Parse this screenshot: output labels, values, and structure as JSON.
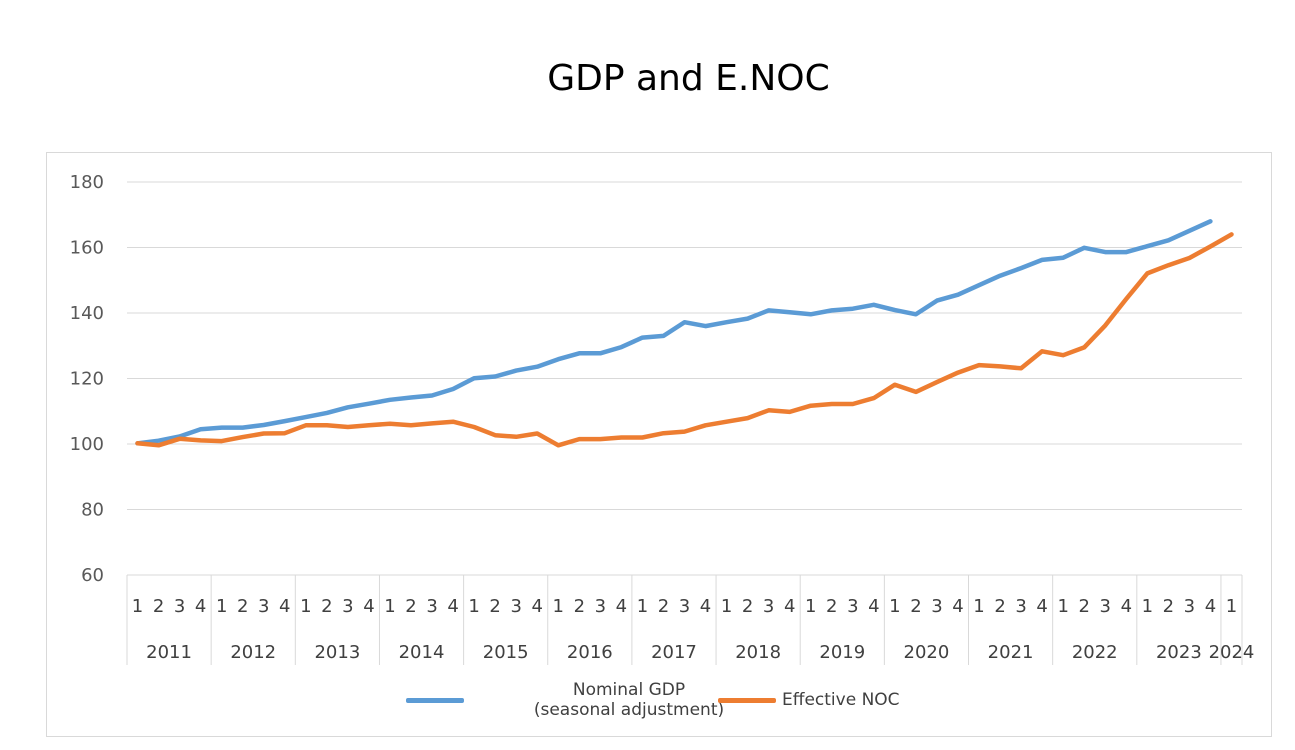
{
  "chart_data": {
    "type": "line",
    "title": "GDP and E.NOC",
    "ylim": [
      60,
      180
    ],
    "yticks": [
      "60",
      "80",
      "100",
      "120",
      "140",
      "160",
      "180"
    ],
    "grid": true,
    "legend_placement": "bottom",
    "quarter_labels": [
      "1",
      "2",
      "3",
      "4",
      "1",
      "2",
      "3",
      "4",
      "1",
      "2",
      "3",
      "4",
      "1",
      "2",
      "3",
      "4",
      "1",
      "2",
      "3",
      "4",
      "1",
      "2",
      "3",
      "4",
      "1",
      "2",
      "3",
      "4",
      "1",
      "2",
      "3",
      "4",
      "1",
      "2",
      "3",
      "4",
      "1",
      "2",
      "3",
      "4",
      "1",
      "2",
      "3",
      "4",
      "1",
      "2",
      "3",
      "4",
      "1",
      "2",
      "3",
      "4",
      "1"
    ],
    "years": [
      "2011",
      "2012",
      "2013",
      "2014",
      "2015",
      "2016",
      "2017",
      "2018",
      "2019",
      "2020",
      "2021",
      "2022",
      "2023",
      "2024"
    ],
    "series": [
      {
        "name": "Nominal GDP\n(seasonal adjustment)",
        "color": "#5b9bd5",
        "values": [
          100.2,
          101.0,
          102.3,
          104.5,
          105.0,
          105.0,
          105.8,
          107.0,
          108.2,
          109.5,
          111.2,
          112.3,
          113.5,
          114.2,
          114.8,
          116.8,
          120.1,
          120.6,
          122.4,
          123.6,
          125.9,
          127.7,
          127.7,
          129.6,
          132.5,
          133.0,
          137.2,
          136.0,
          137.2,
          138.3,
          140.8,
          140.2,
          139.6,
          140.8,
          141.3,
          142.5,
          140.9,
          139.6,
          143.8,
          145.6,
          148.5,
          151.4,
          153.7,
          156.2,
          156.9,
          159.9,
          158.6,
          158.6,
          160.4,
          162.2,
          165.1,
          168.0,
          null
        ]
      },
      {
        "name": "Effective NOC",
        "color": "#ed7d31",
        "values": [
          100.2,
          99.6,
          101.6,
          101.1,
          100.9,
          102.1,
          103.2,
          103.3,
          105.7,
          105.7,
          105.2,
          105.7,
          106.2,
          105.7,
          106.3,
          106.8,
          105.2,
          102.7,
          102.2,
          103.2,
          99.6,
          101.5,
          101.5,
          102.0,
          102.0,
          103.3,
          103.8,
          105.7,
          106.8,
          107.9,
          110.3,
          109.8,
          111.7,
          112.2,
          112.2,
          114.0,
          118.1,
          115.9,
          118.9,
          121.8,
          124.1,
          123.7,
          123.1,
          128.3,
          127.1,
          129.5,
          136.2,
          144.3,
          152.1,
          154.6,
          156.8,
          160.3,
          164.0
        ]
      }
    ]
  }
}
